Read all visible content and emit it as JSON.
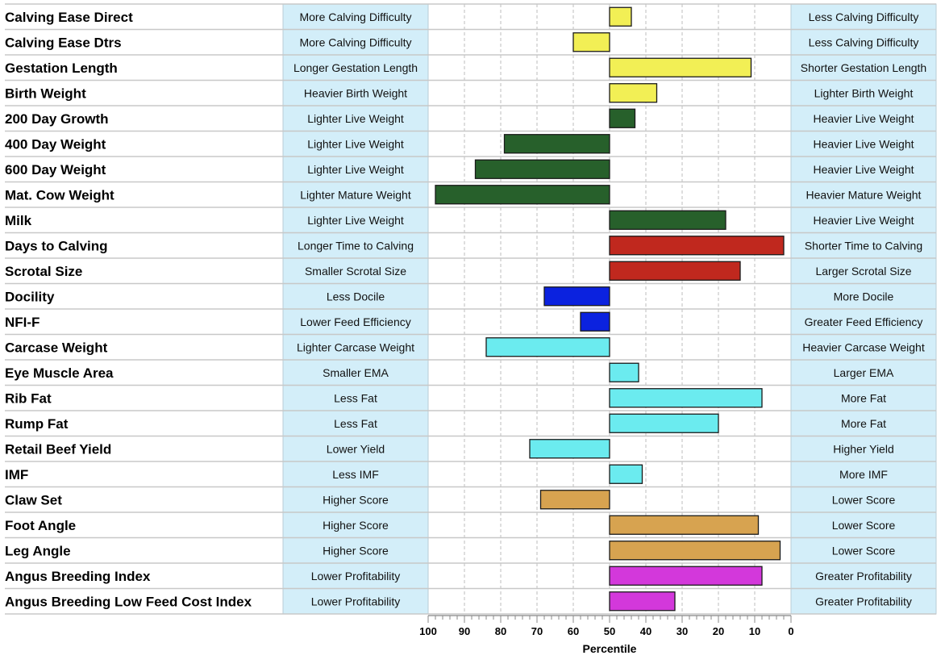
{
  "chart_data": {
    "type": "bar",
    "xlabel": "Percentile",
    "xlim": [
      100,
      0
    ],
    "xticks": [
      "100",
      "90",
      "80",
      "70",
      "60",
      "50",
      "40",
      "30",
      "20",
      "10",
      "0"
    ],
    "center_value": 50,
    "grid": true,
    "traits": [
      {
        "name": "Calving Ease Direct",
        "low_desc": "More Calving Difficulty",
        "high_desc": "Less Calving Difficulty",
        "percentile": 44,
        "group": "calving"
      },
      {
        "name": "Calving Ease Dtrs",
        "low_desc": "More Calving Difficulty",
        "high_desc": "Less Calving Difficulty",
        "percentile": 60,
        "group": "calving"
      },
      {
        "name": "Gestation Length",
        "low_desc": "Longer Gestation Length",
        "high_desc": "Shorter Gestation Length",
        "percentile": 11,
        "group": "calving"
      },
      {
        "name": "Birth Weight",
        "low_desc": "Heavier Birth Weight",
        "high_desc": "Lighter Birth Weight",
        "percentile": 37,
        "group": "calving"
      },
      {
        "name": "200 Day Growth",
        "low_desc": "Lighter Live Weight",
        "high_desc": "Heavier Live Weight",
        "percentile": 43,
        "group": "growth"
      },
      {
        "name": "400 Day Weight",
        "low_desc": "Lighter Live Weight",
        "high_desc": "Heavier Live Weight",
        "percentile": 79,
        "group": "growth"
      },
      {
        "name": "600 Day Weight",
        "low_desc": "Lighter Live Weight",
        "high_desc": "Heavier Live Weight",
        "percentile": 87,
        "group": "growth"
      },
      {
        "name": "Mat. Cow Weight",
        "low_desc": "Lighter Mature Weight",
        "high_desc": "Heavier Mature Weight",
        "percentile": 98,
        "group": "growth"
      },
      {
        "name": "Milk",
        "low_desc": "Lighter Live Weight",
        "high_desc": "Heavier Live Weight",
        "percentile": 18,
        "group": "growth"
      },
      {
        "name": "Days to Calving",
        "low_desc": "Longer Time to Calving",
        "high_desc": "Shorter Time to Calving",
        "percentile": 2,
        "group": "fertility"
      },
      {
        "name": "Scrotal Size",
        "low_desc": "Smaller Scrotal Size",
        "high_desc": "Larger Scrotal Size",
        "percentile": 14,
        "group": "fertility"
      },
      {
        "name": "Docility",
        "low_desc": "Less Docile",
        "high_desc": "More Docile",
        "percentile": 68,
        "group": "temperament"
      },
      {
        "name": "NFI-F",
        "low_desc": "Lower Feed Efficiency",
        "high_desc": "Greater Feed Efficiency",
        "percentile": 58,
        "group": "temperament"
      },
      {
        "name": "Carcase Weight",
        "low_desc": "Lighter Carcase Weight",
        "high_desc": "Heavier Carcase Weight",
        "percentile": 84,
        "group": "carcase"
      },
      {
        "name": "Eye Muscle Area",
        "low_desc": "Smaller EMA",
        "high_desc": "Larger EMA",
        "percentile": 42,
        "group": "carcase"
      },
      {
        "name": "Rib Fat",
        "low_desc": "Less Fat",
        "high_desc": "More Fat",
        "percentile": 8,
        "group": "carcase"
      },
      {
        "name": "Rump Fat",
        "low_desc": "Less Fat",
        "high_desc": "More Fat",
        "percentile": 20,
        "group": "carcase"
      },
      {
        "name": "Retail Beef Yield",
        "low_desc": "Lower Yield",
        "high_desc": "Higher Yield",
        "percentile": 72,
        "group": "carcase"
      },
      {
        "name": "IMF",
        "low_desc": "Less IMF",
        "high_desc": "More IMF",
        "percentile": 41,
        "group": "carcase"
      },
      {
        "name": "Claw Set",
        "low_desc": "Higher Score",
        "high_desc": "Lower Score",
        "percentile": 69,
        "group": "structure"
      },
      {
        "name": "Foot Angle",
        "low_desc": "Higher Score",
        "high_desc": "Lower Score",
        "percentile": 9,
        "group": "structure"
      },
      {
        "name": "Leg Angle",
        "low_desc": "Higher Score",
        "high_desc": "Lower Score",
        "percentile": 3,
        "group": "structure"
      },
      {
        "name": "Angus Breeding Index",
        "low_desc": "Lower Profitability",
        "high_desc": "Greater Profitability",
        "percentile": 8,
        "group": "index"
      },
      {
        "name": "Angus Breeding Low Feed Cost Index",
        "low_desc": "Lower Profitability",
        "high_desc": "Greater Profitability",
        "percentile": 32,
        "group": "index"
      }
    ],
    "group_colors": {
      "calving": "#F2EF55",
      "growth": "#27602B",
      "fertility": "#C0281E",
      "temperament": "#0B22DF",
      "carcase": "#6BEBEF",
      "structure": "#D7A350",
      "index": "#D338DB"
    },
    "desc_box_color": "#D3EEF9",
    "row_line_color": "#C8C8C8"
  }
}
